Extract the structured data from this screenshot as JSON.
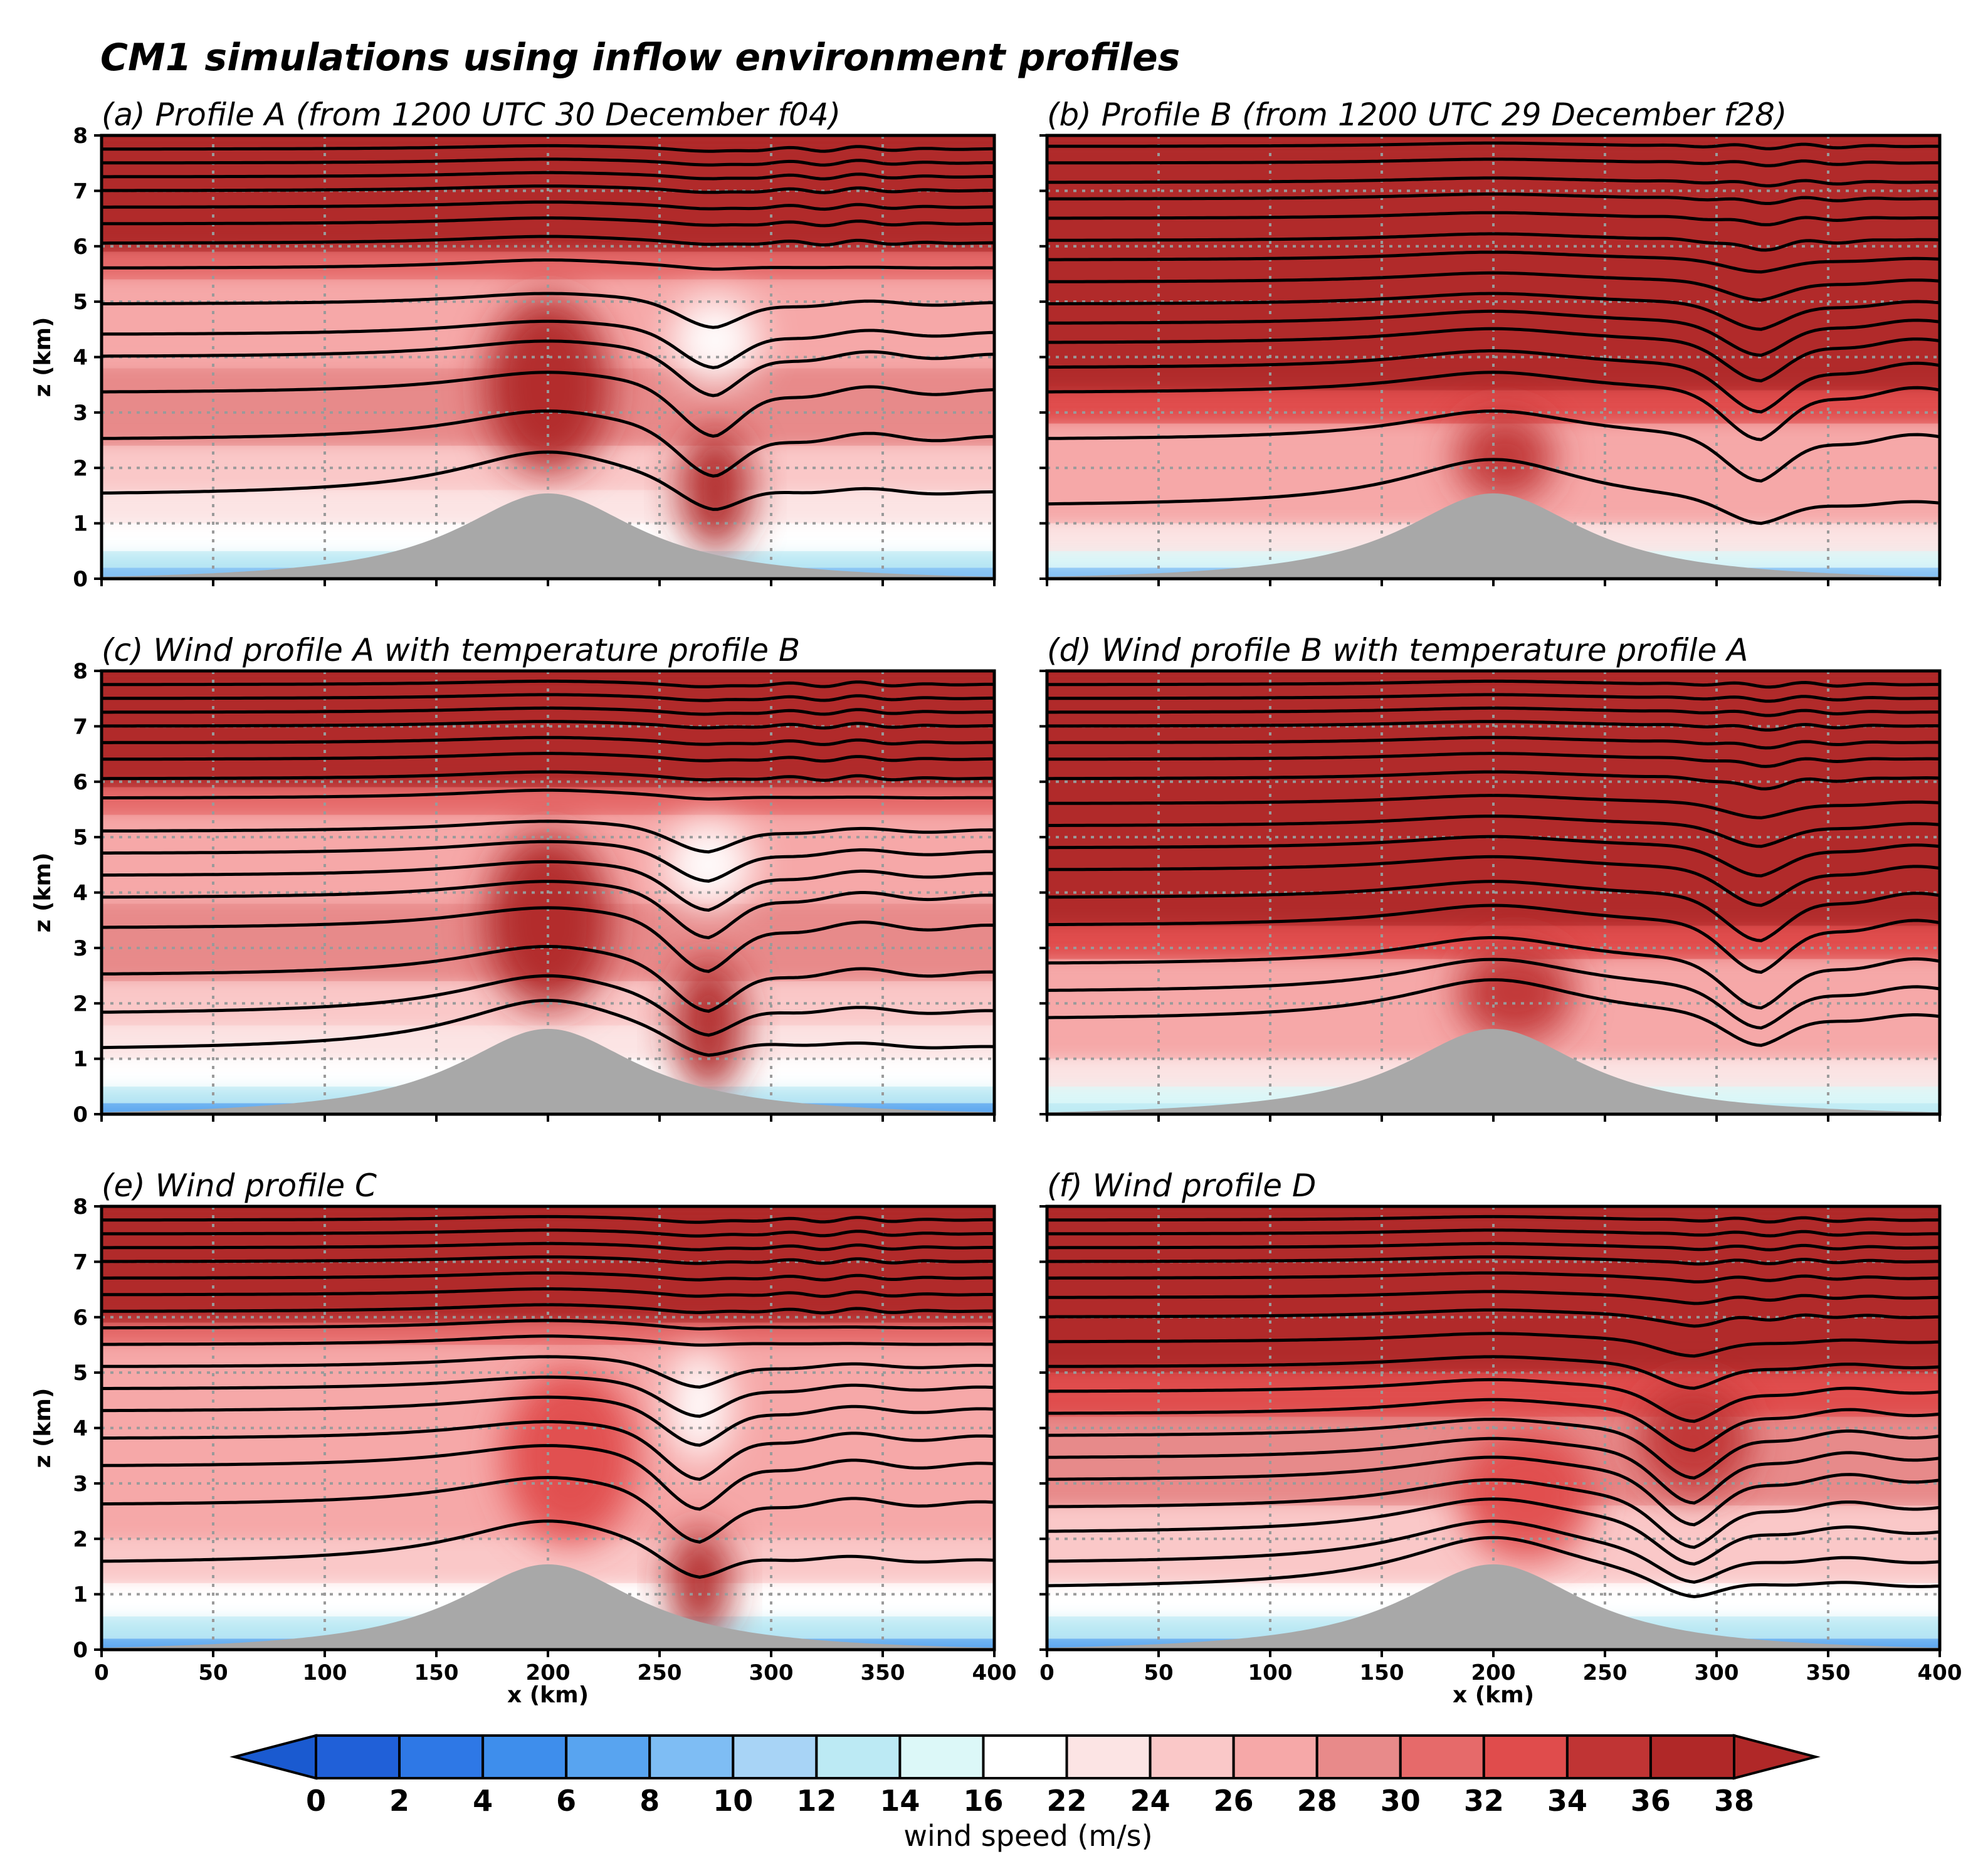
{
  "figure": {
    "title": "CM1 simulations using inflow environment profiles"
  },
  "chart_data": [
    {
      "id": "a",
      "type": "heatmap",
      "title": "(a) Profile A (from 1200 UTC 30 December f04)",
      "xlabel": "",
      "ylabel": "z (km)",
      "xlim": [
        0,
        400
      ],
      "ylim": [
        0,
        8
      ],
      "x_ticks": [
        "0",
        "50",
        "100",
        "150",
        "200",
        "250",
        "300",
        "350",
        "400"
      ],
      "y_ticks": [
        "0",
        "1",
        "2",
        "3",
        "4",
        "5",
        "6",
        "7",
        "8"
      ],
      "grid": true,
      "terrain": {
        "peak_x_km": 200,
        "peak_z_km": 1.6,
        "half_width_km": 50
      },
      "wind_layers": [
        {
          "z_bottom_km": 0,
          "z_top_km": 0.2,
          "speed": 8
        },
        {
          "z_bottom_km": 0.2,
          "z_top_km": 0.5,
          "speed": 12
        },
        {
          "z_bottom_km": 0.5,
          "z_top_km": 1.0,
          "speed": 16
        },
        {
          "z_bottom_km": 1.0,
          "z_top_km": 1.6,
          "speed": 23
        },
        {
          "z_bottom_km": 1.6,
          "z_top_km": 2.4,
          "speed": 25
        },
        {
          "z_bottom_km": 2.4,
          "z_top_km": 3.8,
          "speed": 29
        },
        {
          "z_bottom_km": 3.8,
          "z_top_km": 5.4,
          "speed": 27
        },
        {
          "z_bottom_km": 5.4,
          "z_top_km": 5.9,
          "speed": 31
        },
        {
          "z_bottom_km": 5.9,
          "z_top_km": 8.0,
          "speed": 38
        }
      ],
      "features": [
        {
          "kind": "jet",
          "x_km": 200,
          "z_km": 3.5,
          "sx_km": 28,
          "sz_km": 1.6,
          "speed": 36
        },
        {
          "kind": "jet",
          "x_km": 275,
          "z_km": 1.6,
          "sx_km": 16,
          "sz_km": 1.1,
          "speed": 37
        },
        {
          "kind": "slow",
          "x_km": 275,
          "z_km": 4.3,
          "sx_km": 20,
          "sz_km": 0.8,
          "speed": 16
        }
      ],
      "isentropes": {
        "base_heights_km": [
          1.5,
          2.5,
          3.35,
          4.0,
          4.4,
          4.95,
          5.6,
          6.05,
          6.4,
          6.7,
          7.0,
          7.25,
          7.5,
          7.75
        ],
        "wave_x_km": 275,
        "upper_thin_km": 5.2
      }
    },
    {
      "id": "b",
      "type": "heatmap",
      "title": "(b) Profile B (from 1200 UTC 29 December f28)",
      "xlabel": "",
      "ylabel": "",
      "xlim": [
        0,
        400
      ],
      "ylim": [
        0,
        8
      ],
      "x_ticks": [
        "0",
        "50",
        "100",
        "150",
        "200",
        "250",
        "300",
        "350",
        "400"
      ],
      "y_ticks": [
        "0",
        "1",
        "2",
        "3",
        "4",
        "5",
        "6",
        "7",
        "8"
      ],
      "grid": true,
      "terrain": {
        "peak_x_km": 200,
        "peak_z_km": 1.6,
        "half_width_km": 50
      },
      "wind_layers": [
        {
          "z_bottom_km": 0,
          "z_top_km": 0.2,
          "speed": 8
        },
        {
          "z_bottom_km": 0.2,
          "z_top_km": 0.5,
          "speed": 14
        },
        {
          "z_bottom_km": 0.5,
          "z_top_km": 1.0,
          "speed": 23
        },
        {
          "z_bottom_km": 1.0,
          "z_top_km": 2.8,
          "speed": 27
        },
        {
          "z_bottom_km": 2.8,
          "z_top_km": 3.4,
          "speed": 33
        },
        {
          "z_bottom_km": 3.4,
          "z_top_km": 8.0,
          "speed": 38
        }
      ],
      "features": [
        {
          "kind": "jet",
          "x_km": 205,
          "z_km": 2.2,
          "sx_km": 22,
          "sz_km": 0.8,
          "speed": 35
        }
      ],
      "isentropes": {
        "base_heights_km": [
          1.3,
          2.5,
          3.35,
          3.8,
          4.25,
          4.6,
          4.95,
          5.35,
          5.75,
          6.1,
          6.5,
          6.85,
          7.15,
          7.5,
          7.8
        ],
        "wave_x_km": 320,
        "upper_thin_km": null
      }
    },
    {
      "id": "c",
      "type": "heatmap",
      "title": "(c) Wind profile A with temperature profile B",
      "xlabel": "",
      "ylabel": "z (km)",
      "xlim": [
        0,
        400
      ],
      "ylim": [
        0,
        8
      ],
      "x_ticks": [
        "0",
        "50",
        "100",
        "150",
        "200",
        "250",
        "300",
        "350",
        "400"
      ],
      "y_ticks": [
        "0",
        "1",
        "2",
        "3",
        "4",
        "5",
        "6",
        "7",
        "8"
      ],
      "grid": true,
      "terrain": {
        "peak_x_km": 200,
        "peak_z_km": 1.6,
        "half_width_km": 50
      },
      "wind_layers": [
        {
          "z_bottom_km": 0,
          "z_top_km": 0.2,
          "speed": 6
        },
        {
          "z_bottom_km": 0.2,
          "z_top_km": 0.5,
          "speed": 12
        },
        {
          "z_bottom_km": 0.5,
          "z_top_km": 1.0,
          "speed": 16
        },
        {
          "z_bottom_km": 1.0,
          "z_top_km": 1.6,
          "speed": 23
        },
        {
          "z_bottom_km": 1.6,
          "z_top_km": 2.4,
          "speed": 25
        },
        {
          "z_bottom_km": 2.4,
          "z_top_km": 3.8,
          "speed": 29
        },
        {
          "z_bottom_km": 3.8,
          "z_top_km": 5.4,
          "speed": 27
        },
        {
          "z_bottom_km": 5.4,
          "z_top_km": 5.9,
          "speed": 31
        },
        {
          "z_bottom_km": 5.9,
          "z_top_km": 8.0,
          "speed": 38
        }
      ],
      "features": [
        {
          "kind": "jet",
          "x_km": 200,
          "z_km": 3.5,
          "sx_km": 28,
          "sz_km": 1.6,
          "speed": 36
        },
        {
          "kind": "jet",
          "x_km": 272,
          "z_km": 1.6,
          "sx_km": 16,
          "sz_km": 1.2,
          "speed": 37
        },
        {
          "kind": "slow",
          "x_km": 272,
          "z_km": 4.5,
          "sx_km": 20,
          "sz_km": 0.8,
          "speed": 16
        }
      ],
      "isentropes": {
        "base_heights_km": [
          1.15,
          1.8,
          2.5,
          3.35,
          3.9,
          4.3,
          4.7,
          5.1,
          5.7,
          6.05,
          6.4,
          6.7,
          7.0,
          7.25,
          7.5,
          7.75
        ],
        "wave_x_km": 272,
        "upper_thin_km": 5.2
      }
    },
    {
      "id": "d",
      "type": "heatmap",
      "title": "(d) Wind profile B with temperature profile A",
      "xlabel": "",
      "ylabel": "",
      "xlim": [
        0,
        400
      ],
      "ylim": [
        0,
        8
      ],
      "x_ticks": [
        "0",
        "50",
        "100",
        "150",
        "200",
        "250",
        "300",
        "350",
        "400"
      ],
      "y_ticks": [
        "0",
        "1",
        "2",
        "3",
        "4",
        "5",
        "6",
        "7",
        "8"
      ],
      "grid": true,
      "terrain": {
        "peak_x_km": 200,
        "peak_z_km": 1.6,
        "half_width_km": 50
      },
      "wind_layers": [
        {
          "z_bottom_km": 0,
          "z_top_km": 0.2,
          "speed": 12
        },
        {
          "z_bottom_km": 0.2,
          "z_top_km": 0.5,
          "speed": 14
        },
        {
          "z_bottom_km": 0.5,
          "z_top_km": 1.0,
          "speed": 23
        },
        {
          "z_bottom_km": 1.0,
          "z_top_km": 2.8,
          "speed": 27
        },
        {
          "z_bottom_km": 2.8,
          "z_top_km": 3.4,
          "speed": 33
        },
        {
          "z_bottom_km": 3.4,
          "z_top_km": 8.0,
          "speed": 38
        }
      ],
      "features": [
        {
          "kind": "jet",
          "x_km": 210,
          "z_km": 2.2,
          "sx_km": 26,
          "sz_km": 0.9,
          "speed": 35
        }
      ],
      "isentropes": {
        "base_heights_km": [
          1.7,
          2.2,
          2.7,
          3.4,
          3.9,
          4.4,
          4.8,
          5.2,
          5.6,
          6.05,
          6.4,
          6.7,
          7.0,
          7.25,
          7.5,
          7.75
        ],
        "wave_x_km": 320,
        "upper_thin_km": null
      }
    },
    {
      "id": "e",
      "type": "heatmap",
      "title": "(e) Wind profile C",
      "xlabel": "x (km)",
      "ylabel": "z (km)",
      "xlim": [
        0,
        400
      ],
      "ylim": [
        0,
        8
      ],
      "x_ticks": [
        "0",
        "50",
        "100",
        "150",
        "200",
        "250",
        "300",
        "350",
        "400"
      ],
      "y_ticks": [
        "0",
        "1",
        "2",
        "3",
        "4",
        "5",
        "6",
        "7",
        "8"
      ],
      "grid": true,
      "terrain": {
        "peak_x_km": 200,
        "peak_z_km": 1.6,
        "half_width_km": 50
      },
      "wind_layers": [
        {
          "z_bottom_km": 0,
          "z_top_km": 0.2,
          "speed": 6
        },
        {
          "z_bottom_km": 0.2,
          "z_top_km": 0.6,
          "speed": 12
        },
        {
          "z_bottom_km": 0.6,
          "z_top_km": 1.2,
          "speed": 18
        },
        {
          "z_bottom_km": 1.2,
          "z_top_km": 2.0,
          "speed": 25
        },
        {
          "z_bottom_km": 2.0,
          "z_top_km": 5.5,
          "speed": 27
        },
        {
          "z_bottom_km": 5.5,
          "z_top_km": 5.9,
          "speed": 31
        },
        {
          "z_bottom_km": 5.9,
          "z_top_km": 8.0,
          "speed": 38
        }
      ],
      "features": [
        {
          "kind": "jet",
          "x_km": 210,
          "z_km": 3.5,
          "sx_km": 30,
          "sz_km": 1.6,
          "speed": 33
        },
        {
          "kind": "jet",
          "x_km": 268,
          "z_km": 1.2,
          "sx_km": 14,
          "sz_km": 1.0,
          "speed": 38
        },
        {
          "kind": "slow",
          "x_km": 268,
          "z_km": 4.4,
          "sx_km": 14,
          "sz_km": 1.0,
          "speed": 16
        }
      ],
      "isentropes": {
        "base_heights_km": [
          1.55,
          2.6,
          3.3,
          3.8,
          4.3,
          4.7,
          5.1,
          5.5,
          5.8,
          6.1,
          6.4,
          6.7,
          7.0,
          7.25,
          7.5,
          7.75
        ],
        "wave_x_km": 268,
        "upper_thin_km": 5.2
      }
    },
    {
      "id": "f",
      "type": "heatmap",
      "title": "(f) Wind profile D",
      "xlabel": "x (km)",
      "ylabel": "",
      "xlim": [
        0,
        400
      ],
      "ylim": [
        0,
        8
      ],
      "x_ticks": [
        "0",
        "50",
        "100",
        "150",
        "200",
        "250",
        "300",
        "350",
        "400"
      ],
      "y_ticks": [
        "0",
        "1",
        "2",
        "3",
        "4",
        "5",
        "6",
        "7",
        "8"
      ],
      "grid": true,
      "terrain": {
        "peak_x_km": 200,
        "peak_z_km": 1.6,
        "half_width_km": 50
      },
      "wind_layers": [
        {
          "z_bottom_km": 0,
          "z_top_km": 0.2,
          "speed": 6
        },
        {
          "z_bottom_km": 0.2,
          "z_top_km": 0.6,
          "speed": 12
        },
        {
          "z_bottom_km": 0.6,
          "z_top_km": 1.2,
          "speed": 18
        },
        {
          "z_bottom_km": 1.2,
          "z_top_km": 2.6,
          "speed": 25
        },
        {
          "z_bottom_km": 2.6,
          "z_top_km": 4.2,
          "speed": 29
        },
        {
          "z_bottom_km": 4.2,
          "z_top_km": 5.0,
          "speed": 33
        },
        {
          "z_bottom_km": 5.0,
          "z_top_km": 8.0,
          "speed": 38
        }
      ],
      "features": [
        {
          "kind": "jet",
          "x_km": 215,
          "z_km": 2.8,
          "sx_km": 30,
          "sz_km": 1.2,
          "speed": 33
        },
        {
          "kind": "jet",
          "x_km": 290,
          "z_km": 3.8,
          "sx_km": 25,
          "sz_km": 1.0,
          "speed": 34
        }
      ],
      "isentropes": {
        "base_heights_km": [
          1.1,
          1.55,
          2.1,
          2.55,
          3.05,
          3.45,
          3.85,
          4.25,
          4.65,
          5.1,
          5.55,
          6.0,
          6.35,
          6.7,
          7.0,
          7.25,
          7.5,
          7.75
        ],
        "wave_x_km": 290,
        "upper_thin_km": null
      }
    }
  ],
  "colorbar": {
    "label": "wind speed (m/s)",
    "levels": [
      0,
      2,
      4,
      6,
      8,
      10,
      12,
      14,
      16,
      22,
      24,
      26,
      28,
      30,
      32,
      34,
      36,
      38
    ],
    "tick_labels": [
      "0",
      "2",
      "4",
      "6",
      "8",
      "10",
      "12",
      "14",
      "16",
      "22",
      "24",
      "26",
      "28",
      "30",
      "32",
      "34",
      "36",
      "38"
    ],
    "colors": [
      "#2060D8",
      "#2E78E6",
      "#3E8EEC",
      "#58A4F0",
      "#7EBDF4",
      "#A8D4F6",
      "#BCEAF4",
      "#DCF8F8",
      "#FFFFFF",
      "#FCE4E4",
      "#FAC8C8",
      "#F6A8A8",
      "#E88A8A",
      "#E66A6A",
      "#E04C4C",
      "#C03434",
      "#B02828"
    ],
    "under_color": "#1A5AD0",
    "over_color": "#B02828"
  },
  "styles": {
    "terrain_color": "#A8A8A8",
    "grid_color": "#9A9A9A",
    "contour_color": "#000000"
  }
}
